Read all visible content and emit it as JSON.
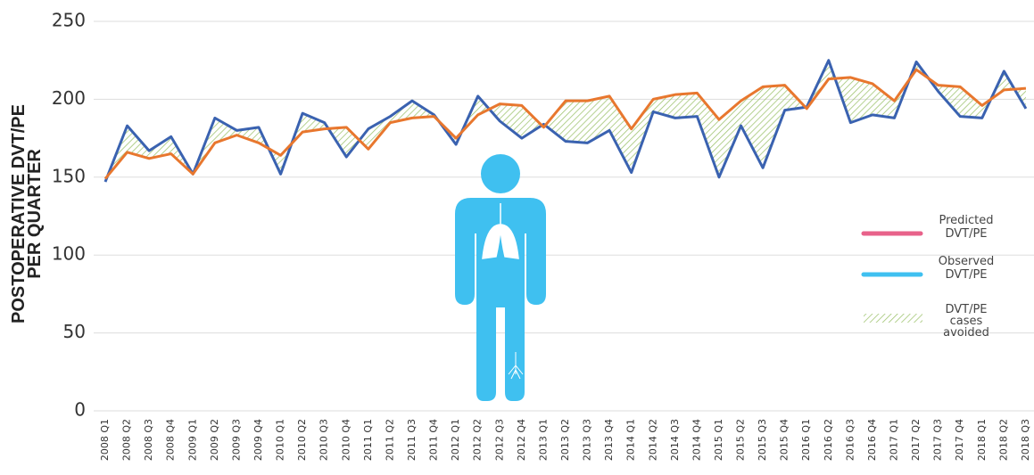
{
  "chart_data": {
    "type": "line",
    "ylabel": "POSTOPERATIVE DVT/PE PER QUARTER",
    "categories": [
      "2008 Q1",
      "2008 Q2",
      "2008 Q3",
      "2008 Q4",
      "2009 Q1",
      "2009 Q2",
      "2009 Q3",
      "2009 Q4",
      "2010 Q1",
      "2010 Q2",
      "2010 Q3",
      "2010 Q4",
      "2011 Q1",
      "2011 Q2",
      "2011 Q3",
      "2011 Q4",
      "2012 Q1",
      "2012 Q2",
      "2012 Q3",
      "2012 Q4",
      "2013 Q1",
      "2013 Q2",
      "2013 Q3",
      "2013 Q4",
      "2014 Q1",
      "2014 Q2",
      "2014 Q3",
      "2014 Q4",
      "2015 Q1",
      "2015 Q2",
      "2015 Q3",
      "2015 Q4",
      "2016 Q1",
      "2016 Q2",
      "2016 Q3",
      "2016 Q4",
      "2017 Q1",
      "2017 Q2",
      "2017 Q3",
      "2017 Q4",
      "2018 Q1",
      "2018 Q2",
      "2018 Q3"
    ],
    "series": [
      {
        "name": "Predicted DVT/PE",
        "color": "#e8772e",
        "legend_color": "#e8628a",
        "values": [
          149,
          166,
          162,
          165,
          152,
          172,
          177,
          172,
          164,
          179,
          181,
          182,
          168,
          185,
          188,
          189,
          175,
          190,
          197,
          196,
          182,
          199,
          199,
          202,
          181,
          200,
          203,
          204,
          187,
          199,
          208,
          209,
          194,
          213,
          214,
          210,
          199,
          219,
          209,
          208,
          196,
          206,
          207
        ]
      },
      {
        "name": "Observed DVT/PE",
        "color": "#3a62b0",
        "legend_color": "#3fc0f0",
        "values": [
          147,
          183,
          167,
          176,
          152,
          188,
          180,
          182,
          152,
          191,
          185,
          163,
          181,
          189,
          199,
          190,
          171,
          202,
          186,
          175,
          184,
          173,
          172,
          180,
          153,
          192,
          188,
          189,
          150,
          183,
          156,
          193,
          195,
          225,
          185,
          190,
          188,
          224,
          205,
          189,
          188,
          218,
          194
        ]
      }
    ],
    "fill_label": "DVT/PE cases avoided",
    "fill_color": "#9cc26b",
    "ylim": [
      0,
      250
    ],
    "yticks": [
      0,
      50,
      100,
      150,
      200,
      250
    ],
    "grid": true
  }
}
